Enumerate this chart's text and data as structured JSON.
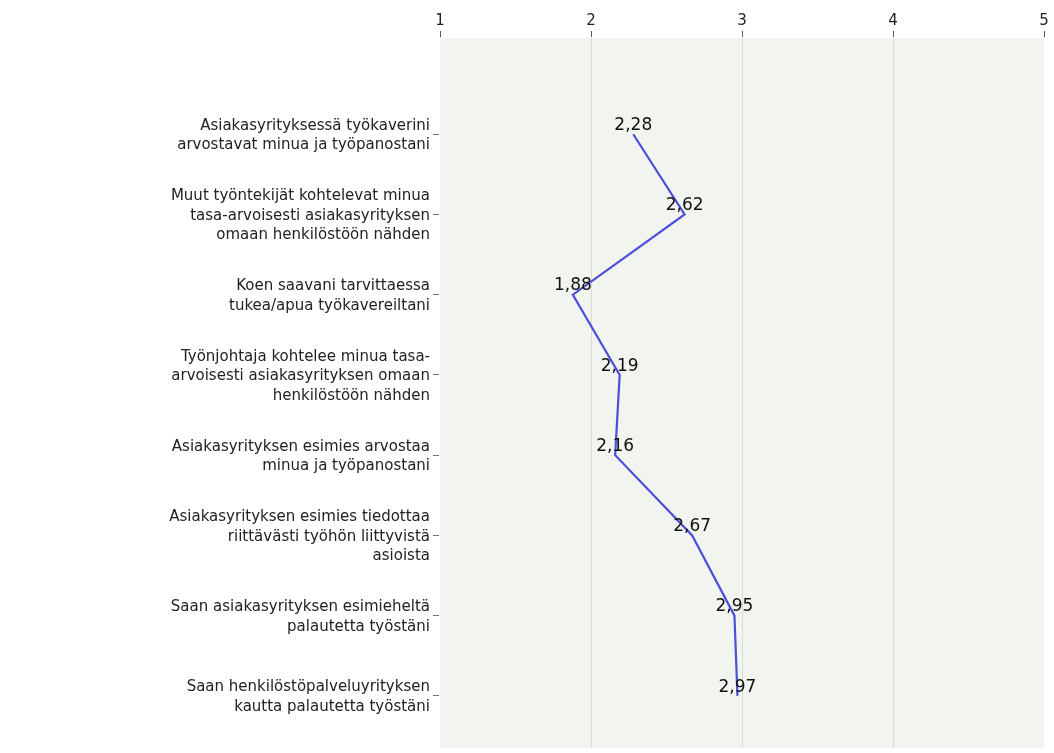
{
  "chart_data": {
    "type": "line",
    "orientation": "horizontal",
    "categories": [
      "Asiakasyrityksessä työkaverini arvostavat minua ja työpanostani",
      "Muut työntekijät kohtelevat minua tasa-arvoisesti asiakasyrityksen omaan henkilöstöön nähden",
      "Koen saavani tarvittaessa tukea/apua työkavereiltani",
      "Työnjohtaja kohtelee minua tasa-arvoisesti asiakasyrityksen omaan henkilöstöön nähden",
      "Asiakasyrityksen esimies arvostaa minua ja työpanostani",
      "Asiakasyrityksen esimies tiedottaa riittävästi työhön liittyvistä asioista",
      "Saan asiakasyrityksen esimieheltä palautetta työstäni",
      "Saan henkilöstöpalveluyrityksen kautta palautetta työstäni"
    ],
    "series": [
      {
        "color": "#4b50d8",
        "values": [
          2.28,
          2.62,
          1.88,
          2.19,
          2.16,
          2.67,
          2.95,
          2.97
        ],
        "value_labels": [
          "2,28",
          "2,62",
          "1,88",
          "2,19",
          "2,16",
          "2,67",
          "2,95",
          "2,97"
        ]
      }
    ],
    "xlim": [
      1,
      5
    ],
    "xticks": [
      1,
      2,
      3,
      4,
      5
    ],
    "grid": "x",
    "marker": "none",
    "line_style": "solid",
    "legend": false
  }
}
